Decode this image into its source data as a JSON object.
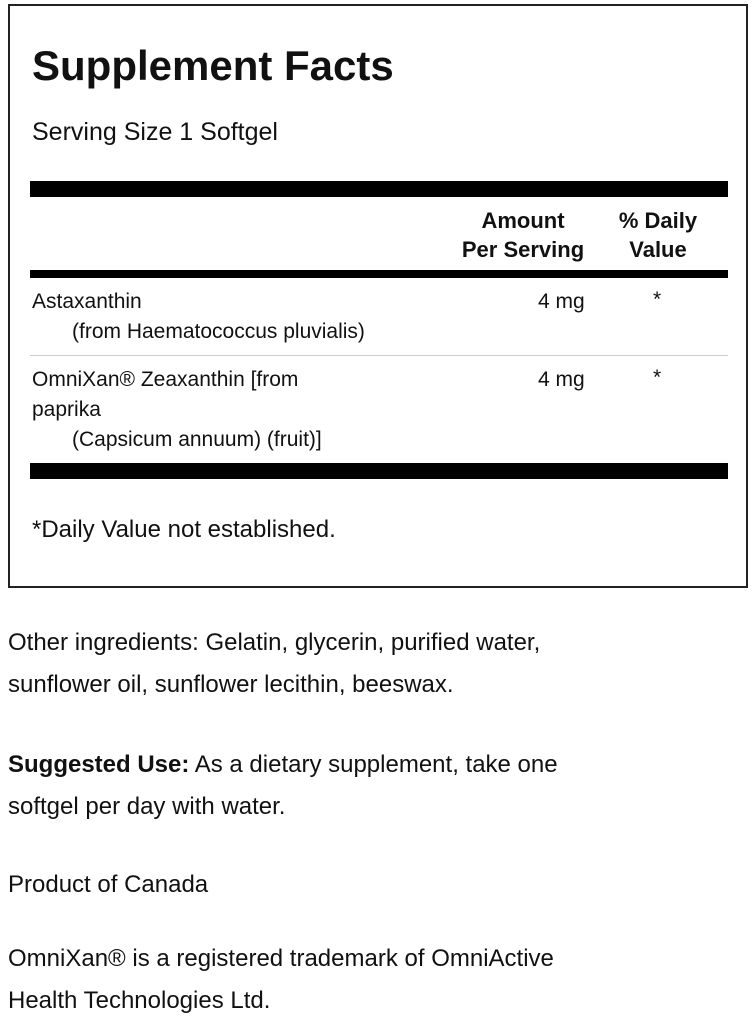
{
  "facts": {
    "title": "Supplement Facts",
    "serving_size": "Serving Size 1 Softgel",
    "col_amount": [
      "Amount",
      "Per Serving"
    ],
    "col_dv": [
      "% Daily",
      "Value"
    ],
    "rows": [
      {
        "name": "Astaxanthin",
        "sub": "(from Haematococcus pluvialis)",
        "amount": "4 mg",
        "dv": "*"
      },
      {
        "name": "OmniXan® Zeaxanthin [from",
        "name2": "paprika",
        "sub": "(Capsicum annuum) (fruit)]",
        "amount": "4 mg",
        "dv": "*"
      }
    ],
    "footnote": "*Daily Value not established."
  },
  "other_ingredients": [
    "Other ingredients: Gelatin, glycerin, purified water,",
    "sunflower oil, sunflower lecithin, beeswax."
  ],
  "suggested_use": {
    "label": "Suggested Use:",
    "text": " As a dietary supplement, take one",
    "line2": "softgel per day with water."
  },
  "origin": "Product of Canada",
  "trademark": [
    "OmniXan® is a registered trademark of OmniActive",
    "Health Technologies Ltd."
  ]
}
